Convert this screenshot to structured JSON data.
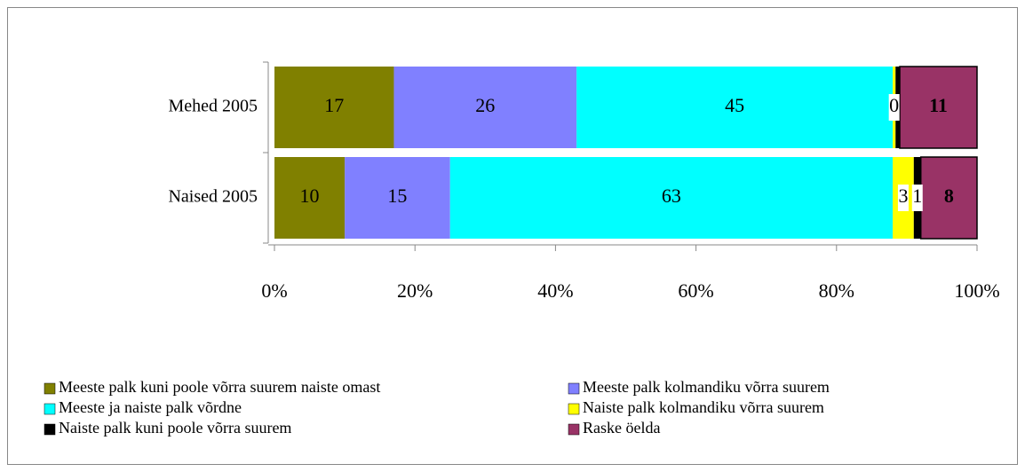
{
  "chart_data": {
    "type": "stacked_barh",
    "categories": [
      "Mehed 2005",
      "Naised 2005"
    ],
    "series": [
      {
        "name": "Meeste palk kuni poole võrra suurem naiste omast",
        "color": "#808000",
        "values": [
          17,
          10
        ]
      },
      {
        "name": "Meeste palk kolmandiku võrra suurem",
        "color": "#8080ff",
        "values": [
          26,
          15
        ]
      },
      {
        "name": "Meeste ja naiste palk võrdne",
        "color": "#00ffff",
        "values": [
          45,
          63
        ]
      },
      {
        "name": "Naiste palk kolmandiku võrra suurem",
        "color": "#ffff00",
        "values": [
          0.4,
          3
        ],
        "value_labels": [
          "0",
          "3"
        ]
      },
      {
        "name": "Naiste palk kuni poole võrra suurem",
        "color": "#000000",
        "values": [
          0.6,
          1
        ],
        "value_labels": [
          null,
          "1"
        ]
      },
      {
        "name": "Raske öelda",
        "color": "#993366",
        "values": [
          11,
          8
        ]
      }
    ],
    "xlim": [
      0,
      100
    ],
    "xticks": [
      {
        "value": 0,
        "label": "0%"
      },
      {
        "value": 20,
        "label": "20%"
      },
      {
        "value": 40,
        "label": "40%"
      },
      {
        "value": 60,
        "label": "60%"
      },
      {
        "value": 80,
        "label": "80%"
      },
      {
        "value": 100,
        "label": "100%"
      }
    ],
    "legend": "bottom"
  }
}
